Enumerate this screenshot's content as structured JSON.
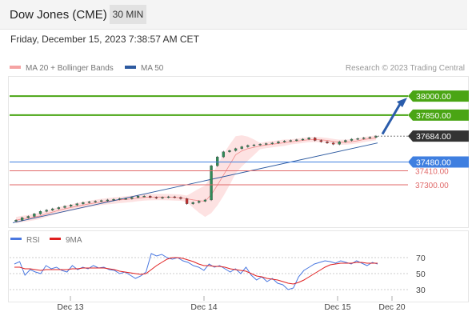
{
  "header": {
    "title": "Dow Jones (CME)",
    "timeframe": "30 MIN"
  },
  "datetime": "Friday, December 15, 2023 7:38:57 AM CET",
  "legend": {
    "bb_label": "MA 20 + Bollinger Bands",
    "ma50_label": "MA 50",
    "credit": "Research © 2023 Trading Central"
  },
  "rsi_legend": {
    "rsi_label": "RSI",
    "ma_label": "9MA"
  },
  "colors": {
    "bb_band": "#fde2e2",
    "bb_line": "#f28a8a",
    "ma50": "#2d5aa0",
    "resistance": "#4aa514",
    "support": "#3f7fe0",
    "minor_support": "#e06a6a",
    "current": "#333333",
    "rsi": "#4a78e0",
    "rsi_ma": "#e02020",
    "candle_up": "#2e8b57",
    "candle_down": "#c03030",
    "arrow": "#2a5cab"
  },
  "chart_data": [
    {
      "type": "candlestick",
      "title": "Dow Jones (CME)",
      "interval": "30 MIN",
      "ylim": [
        36990,
        38140
      ],
      "x_ticks": [
        "Dec 13",
        "Dec 14",
        "Dec 15",
        "Dec 20"
      ],
      "levels": [
        {
          "value": 38000.0,
          "label": "38000.00",
          "kind": "resistance"
        },
        {
          "value": 37850.0,
          "label": "37850.00",
          "kind": "resistance"
        },
        {
          "value": 37684.0,
          "label": "37684.00",
          "kind": "current"
        },
        {
          "value": 37480.0,
          "label": "37480.00",
          "kind": "support"
        },
        {
          "value": 37410.0,
          "label": "37410.00",
          "kind": "minor_support"
        },
        {
          "value": 37300.0,
          "label": "37300.00",
          "kind": "minor_support"
        }
      ],
      "series": [
        {
          "name": "MA 20 + Bollinger Bands",
          "trend_start": 37030,
          "trend_end": 37640
        },
        {
          "name": "MA 50",
          "trend_start": 37000,
          "trend_end": 37630
        }
      ],
      "approx_close": [
        37020,
        37040,
        37050,
        37070,
        37090,
        37100,
        37110,
        37120,
        37130,
        37140,
        37150,
        37160,
        37165,
        37170,
        37175,
        37180,
        37185,
        37190,
        37190,
        37200,
        37210,
        37210,
        37200,
        37195,
        37200,
        37205,
        37200,
        37190,
        37150,
        37160,
        37170,
        37180,
        37450,
        37520,
        37560,
        37570,
        37585,
        37600,
        37610,
        37615,
        37620,
        37625,
        37630,
        37640,
        37645,
        37650,
        37655,
        37660,
        37670,
        37650,
        37640,
        37630,
        37620,
        37640,
        37650,
        37660,
        37665,
        37670,
        37675,
        37684
      ],
      "forecast_arrow": {
        "from": 37700,
        "to": 38000
      }
    },
    {
      "type": "line",
      "title": "RSI",
      "yticks": [
        70,
        50,
        30
      ],
      "ylim": [
        20,
        80
      ],
      "series": [
        {
          "name": "RSI",
          "values": [
            62,
            65,
            48,
            55,
            52,
            50,
            60,
            56,
            58,
            54,
            52,
            60,
            55,
            58,
            56,
            60,
            57,
            58,
            55,
            54,
            50,
            52,
            48,
            44,
            47,
            52,
            75,
            72,
            74,
            70,
            68,
            70,
            66,
            64,
            60,
            58,
            54,
            62,
            58,
            60,
            56,
            52,
            56,
            50,
            58,
            48,
            42,
            46,
            40,
            44,
            38,
            36,
            30,
            32,
            46,
            54,
            58,
            62,
            64,
            66,
            65,
            63,
            66,
            64,
            62,
            66,
            63,
            60,
            64,
            62
          ]
        },
        {
          "name": "9MA",
          "values": [
            58,
            58,
            56,
            56,
            55,
            54,
            55,
            55,
            55,
            55,
            55,
            56,
            56,
            57,
            57,
            57,
            57,
            57,
            56,
            55,
            53,
            52,
            51,
            50,
            49,
            50,
            55,
            60,
            64,
            68,
            70,
            70,
            69,
            67,
            65,
            62,
            60,
            60,
            59,
            59,
            58,
            56,
            55,
            54,
            53,
            50,
            47,
            46,
            44,
            43,
            42,
            40,
            38,
            37,
            39,
            42,
            46,
            50,
            54,
            58,
            61,
            62,
            63,
            63,
            63,
            64,
            64,
            63,
            63,
            63
          ]
        }
      ]
    }
  ]
}
